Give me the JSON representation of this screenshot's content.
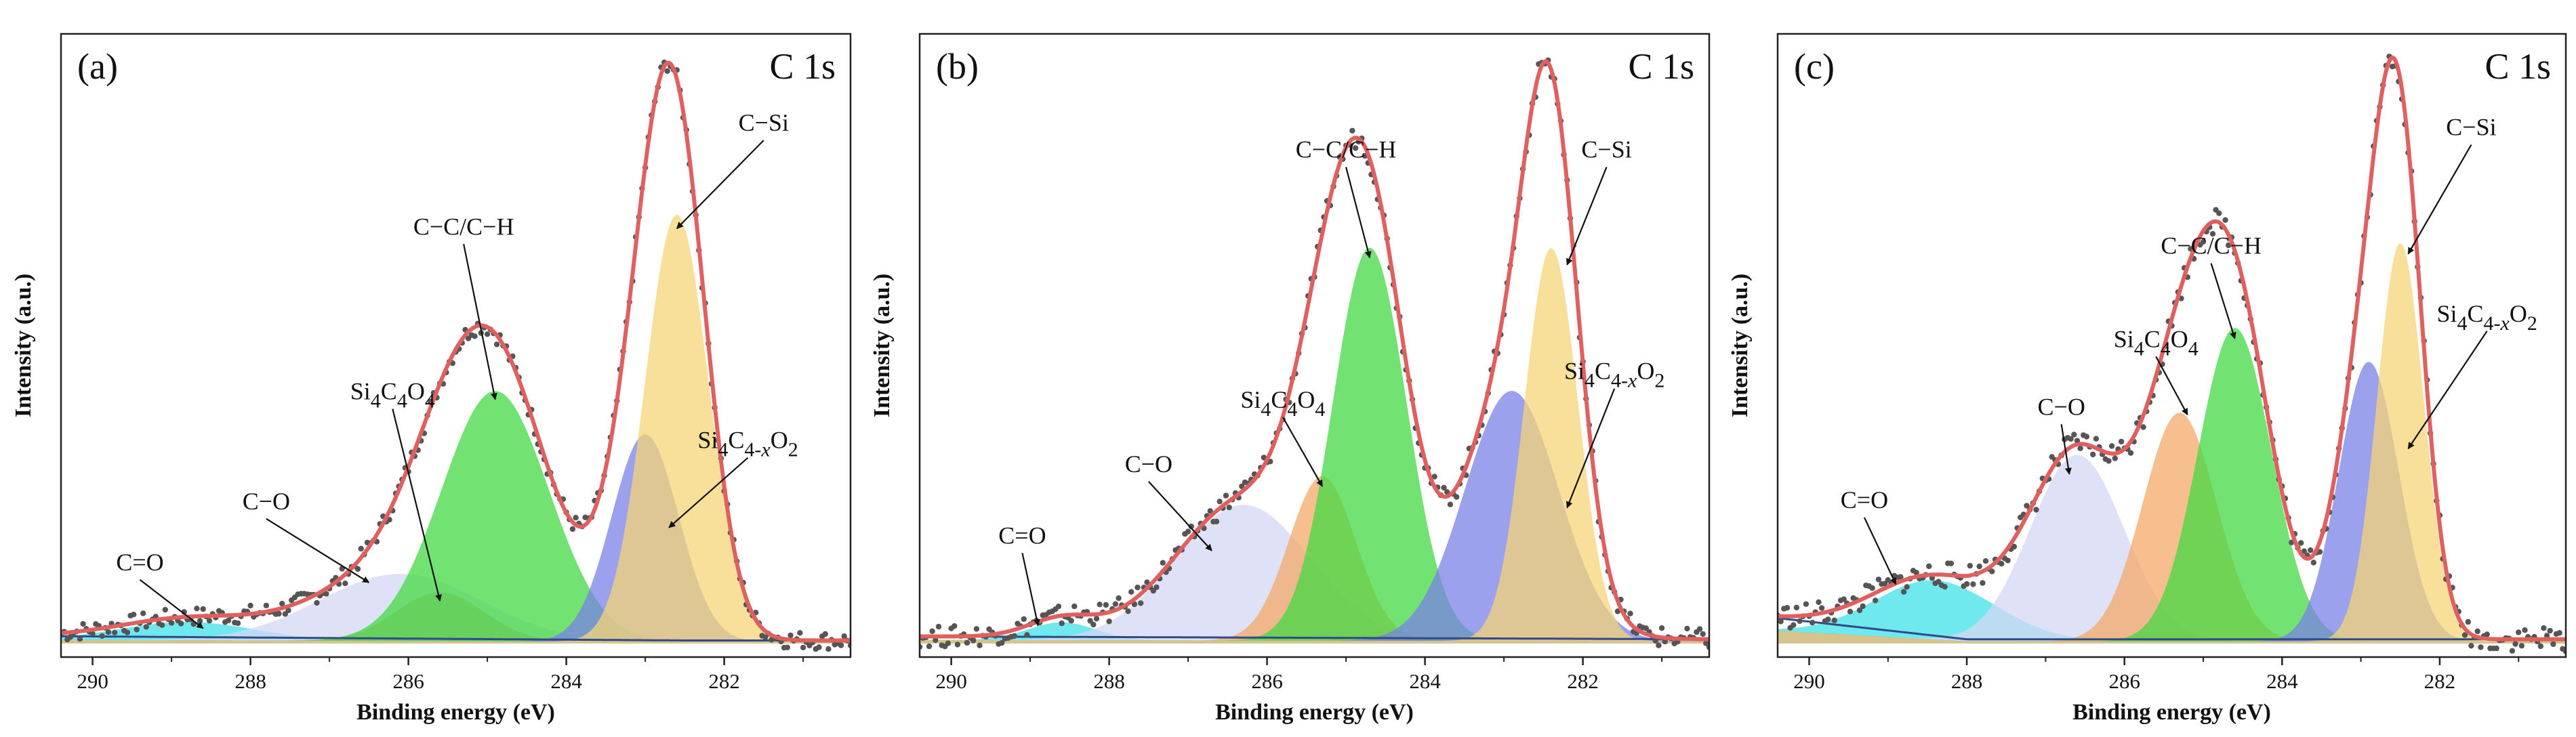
{
  "figure_labels": {
    "x_axis_title": "Binding energy (eV)",
    "y_axis_title": "Intensity (a.u.)"
  },
  "colors": {
    "envelope": "#e06060",
    "raw_points": "#555555",
    "C=O": "#3fe0e8",
    "C-O": "#d4d8f4",
    "Si4C4O4_a": "#c9a890",
    "Si4C4O4_bc": "#f4a868",
    "C-C/C-H": "#43d943",
    "Si4C4-xO2": "#7a82e6",
    "C-Si": "#f6d478",
    "background": "#2e4a8a"
  },
  "chart_data": [
    {
      "panel": "(a)",
      "spectrum": "C 1s",
      "type": "line",
      "xlabel": "Binding energy (eV)",
      "ylabel": "Intensity (a.u.)",
      "xlim": [
        290.4,
        280.4
      ],
      "x_reversed": true,
      "ylim": [
        0,
        100
      ],
      "x_ticks": [
        290,
        288,
        286,
        284,
        282
      ],
      "series": [
        {
          "name": "C=O",
          "center": 288.8,
          "fwhm": 2.0,
          "height": 3,
          "label": "C=O",
          "label_at": [
            289.4,
            12
          ],
          "arrow_to": [
            288.6,
            2.5
          ]
        },
        {
          "name": "C-O",
          "center": 286.1,
          "fwhm": 2.4,
          "height": 11,
          "label": "C−O",
          "label_at": [
            287.8,
            22
          ],
          "arrow_to": [
            286.5,
            10
          ]
        },
        {
          "name": "Si4C4O4",
          "center": 285.6,
          "fwhm": 1.3,
          "height": 8,
          "label": "Si4C4O4",
          "label_at": [
            286.2,
            40
          ],
          "arrow_to": [
            285.6,
            7
          ]
        },
        {
          "name": "C-C/C-H",
          "center": 284.9,
          "fwhm": 1.6,
          "height": 41,
          "label": "C−C/C−H",
          "label_at": [
            285.3,
            67
          ],
          "arrow_to": [
            284.9,
            40
          ]
        },
        {
          "name": "Si4C4-xO2",
          "center": 283.0,
          "fwhm": 1.0,
          "height": 34,
          "label": "Si4C4-xO2",
          "label_at": [
            281.7,
            32
          ],
          "arrow_to": [
            282.7,
            19
          ]
        },
        {
          "name": "C-Si",
          "center": 282.6,
          "fwhm": 0.95,
          "height": 70,
          "label": "C−Si",
          "label_at": [
            281.5,
            84
          ],
          "arrow_to": [
            282.6,
            68
          ]
        }
      ],
      "background_line": [
        [
          290.4,
          1.2
        ],
        [
          282.5,
          0.5
        ],
        [
          280.4,
          0.5
        ]
      ],
      "envelope_peak": 96
    },
    {
      "panel": "(b)",
      "spectrum": "C 1s",
      "type": "line",
      "xlabel": "Binding energy (eV)",
      "ylabel": "Intensity (a.u.)",
      "xlim": [
        290.4,
        280.4
      ],
      "x_reversed": true,
      "ylim": [
        0,
        100
      ],
      "x_ticks": [
        290,
        288,
        286,
        284,
        282
      ],
      "series": [
        {
          "name": "C=O",
          "center": 288.6,
          "fwhm": 1.0,
          "height": 2.5,
          "label": "C=O",
          "label_at": [
            289.1,
            14
          ],
          "arrow_to": [
            288.9,
            2.5
          ]
        },
        {
          "name": "C-O",
          "center": 286.3,
          "fwhm": 2.0,
          "height": 19,
          "label": "C−O",
          "label_at": [
            287.5,
            24
          ],
          "arrow_to": [
            286.7,
            13
          ]
        },
        {
          "name": "Si4C4O4",
          "center": 285.3,
          "fwhm": 1.0,
          "height": 23,
          "label": "Si4C4O4",
          "label_at": [
            285.8,
            33
          ],
          "arrow_to": [
            285.3,
            22
          ]
        },
        {
          "name": "C-C/C-H",
          "center": 284.7,
          "fwhm": 1.1,
          "height": 55,
          "label": "C−C/C−H",
          "label_at": [
            285.0,
            68
          ],
          "arrow_to": [
            284.7,
            54
          ]
        },
        {
          "name": "Si4C4-xO2",
          "center": 282.9,
          "fwhm": 1.4,
          "height": 35,
          "label": "Si4C4-xO2",
          "label_at": [
            281.6,
            37
          ],
          "arrow_to": [
            282.2,
            19
          ]
        },
        {
          "name": "C-Si",
          "center": 282.4,
          "fwhm": 0.8,
          "height": 55,
          "label": "C−Si",
          "label_at": [
            281.7,
            68
          ],
          "arrow_to": [
            282.2,
            53
          ]
        }
      ],
      "background_line": [
        [
          290.4,
          1.0
        ],
        [
          280.4,
          0.6
        ]
      ],
      "envelope_peak": 82
    },
    {
      "panel": "(c)",
      "spectrum": "C 1s",
      "type": "line",
      "xlabel": "Binding energy (eV)",
      "ylabel": "Intensity (a.u.)",
      "xlim": [
        290.4,
        280.4
      ],
      "x_reversed": true,
      "ylim": [
        0,
        100
      ],
      "x_ticks": [
        290,
        288,
        286,
        284,
        282
      ],
      "series": [
        {
          "name": "C=O",
          "center": 288.4,
          "fwhm": 1.8,
          "height": 7,
          "label": "C=O",
          "label_at": [
            289.3,
            16
          ],
          "arrow_to": [
            288.9,
            7
          ]
        },
        {
          "name": "C-O",
          "center": 286.6,
          "fwhm": 1.4,
          "height": 22,
          "label": "C−O",
          "label_at": [
            286.8,
            27
          ],
          "arrow_to": [
            286.7,
            20
          ]
        },
        {
          "name": "Si4C4O4",
          "center": 285.3,
          "fwhm": 1.1,
          "height": 27,
          "label": "Si4C4O4",
          "label_at": [
            285.6,
            35
          ],
          "arrow_to": [
            285.2,
            27
          ]
        },
        {
          "name": "C-C/C-H",
          "center": 284.6,
          "fwhm": 1.1,
          "height": 37,
          "label": "C−C/C−H",
          "label_at": [
            284.9,
            46
          ],
          "arrow_to": [
            284.6,
            36
          ]
        },
        {
          "name": "Si4C4-xO2",
          "center": 282.9,
          "fwhm": 0.9,
          "height": 33,
          "label": "Si4C4-xO2",
          "label_at": [
            281.4,
            38
          ],
          "arrow_to": [
            282.4,
            23
          ]
        },
        {
          "name": "C-Si",
          "center": 282.5,
          "fwhm": 0.7,
          "height": 47,
          "label": "C−Si",
          "label_at": [
            281.6,
            60
          ],
          "arrow_to": [
            282.4,
            46
          ]
        }
      ],
      "background_line": [
        [
          290.4,
          3.0
        ],
        [
          288.0,
          0.5
        ],
        [
          280.4,
          0.5
        ]
      ],
      "envelope_peak": 68
    }
  ]
}
